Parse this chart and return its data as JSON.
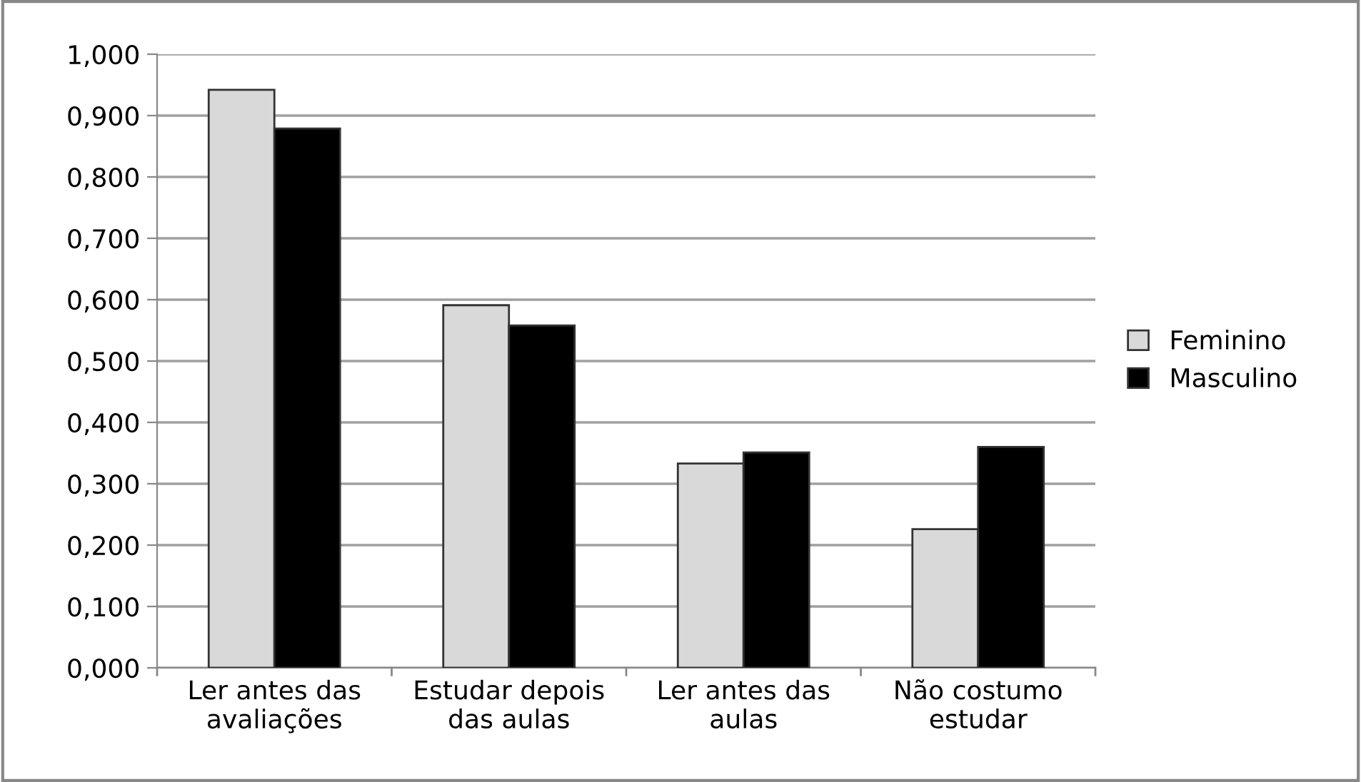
{
  "chart_data": {
    "type": "bar",
    "categories": [
      "Ler antes das\navaliações",
      "Estudar depois\ndas aulas",
      "Ler antes das\naulas",
      "Não costumo\nestudar"
    ],
    "series": [
      {
        "name": "Feminino",
        "color": "#d9d9d9",
        "values": [
          0.942,
          0.591,
          0.333,
          0.226
        ]
      },
      {
        "name": "Masculino",
        "color": "#000000",
        "values": [
          0.879,
          0.558,
          0.351,
          0.36
        ]
      }
    ],
    "ylim": [
      0,
      1
    ],
    "yticks": [
      {
        "value": 0,
        "label": "0,000"
      },
      {
        "value": 0.1,
        "label": "0,100"
      },
      {
        "value": 0.2,
        "label": "0,200"
      },
      {
        "value": 0.3,
        "label": "0,300"
      },
      {
        "value": 0.4,
        "label": "0,400"
      },
      {
        "value": 0.5,
        "label": "0,500"
      },
      {
        "value": 0.6,
        "label": "0,600"
      },
      {
        "value": 0.7,
        "label": "0,700"
      },
      {
        "value": 0.8,
        "label": "0,800"
      },
      {
        "value": 0.9,
        "label": "0,900"
      },
      {
        "value": 1,
        "label": "1,000"
      }
    ],
    "grid": "y",
    "legend": "right"
  }
}
